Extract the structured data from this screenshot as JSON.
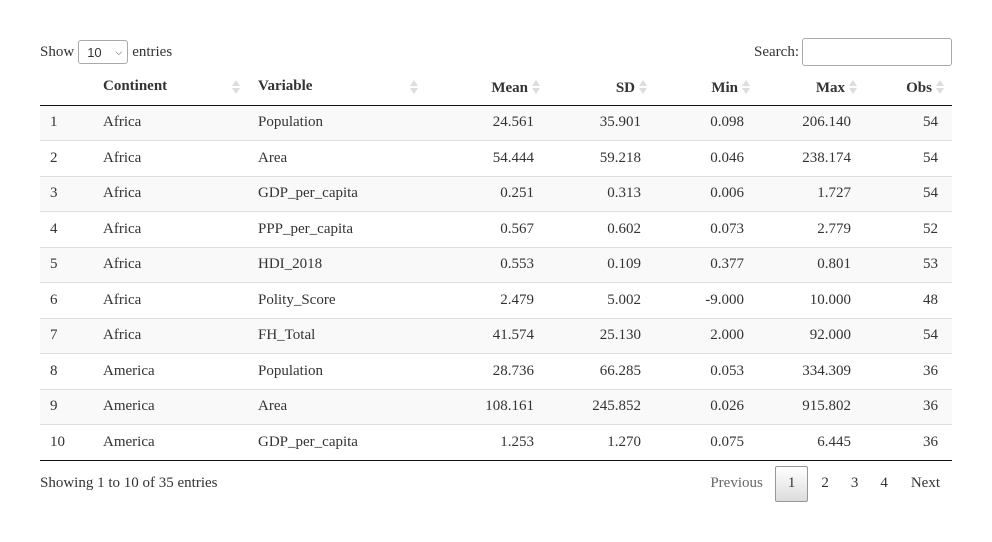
{
  "length_menu": {
    "prefix": "Show",
    "selected": "10",
    "suffix": "entries"
  },
  "search": {
    "label": "Search:",
    "value": ""
  },
  "table": {
    "columns": [
      "",
      "Continent",
      "Variable",
      "Mean",
      "SD",
      "Min",
      "Max",
      "Obs"
    ],
    "rows": [
      [
        "1",
        "Africa",
        "Population",
        "24.561",
        "35.901",
        "0.098",
        "206.140",
        "54"
      ],
      [
        "2",
        "Africa",
        "Area",
        "54.444",
        "59.218",
        "0.046",
        "238.174",
        "54"
      ],
      [
        "3",
        "Africa",
        "GDP_per_capita",
        "0.251",
        "0.313",
        "0.006",
        "1.727",
        "54"
      ],
      [
        "4",
        "Africa",
        "PPP_per_capita",
        "0.567",
        "0.602",
        "0.073",
        "2.779",
        "52"
      ],
      [
        "5",
        "Africa",
        "HDI_2018",
        "0.553",
        "0.109",
        "0.377",
        "0.801",
        "53"
      ],
      [
        "6",
        "Africa",
        "Polity_Score",
        "2.479",
        "5.002",
        "-9.000",
        "10.000",
        "48"
      ],
      [
        "7",
        "Africa",
        "FH_Total",
        "41.574",
        "25.130",
        "2.000",
        "92.000",
        "54"
      ],
      [
        "8",
        "America",
        "Population",
        "28.736",
        "66.285",
        "0.053",
        "334.309",
        "36"
      ],
      [
        "9",
        "America",
        "Area",
        "108.161",
        "245.852",
        "0.026",
        "915.802",
        "36"
      ],
      [
        "10",
        "America",
        "GDP_per_capita",
        "1.253",
        "1.270",
        "0.075",
        "6.445",
        "36"
      ]
    ]
  },
  "info": "Showing 1 to 10 of 35 entries",
  "pagination": {
    "previous": "Previous",
    "pages": [
      "1",
      "2",
      "3",
      "4"
    ],
    "current": "1",
    "next": "Next"
  }
}
